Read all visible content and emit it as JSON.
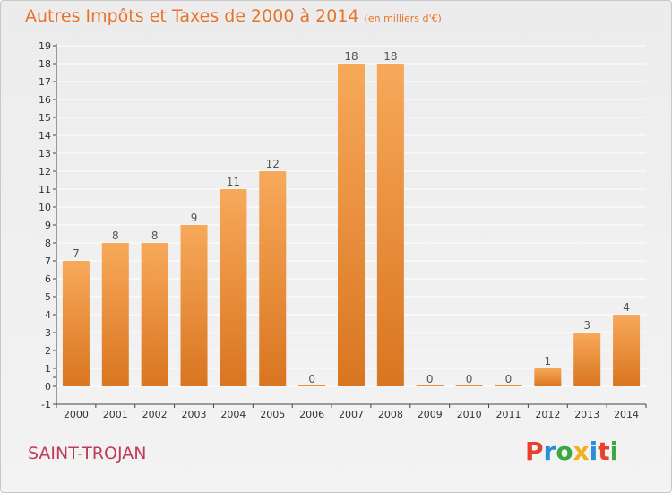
{
  "header": {
    "title": "Autres Impôts et Taxes de 2000 à 2014",
    "unit": "(en milliers d'€)"
  },
  "footer": {
    "commune": "SAINT-TROJAN",
    "brand": "Proxiti",
    "brand_colors": [
      "#e8402a",
      "#2a8fd6",
      "#39a845",
      "#f2b01e",
      "#2a8fd6",
      "#e8402a",
      "#39a845"
    ]
  },
  "colors": {
    "bar_light": "#f7a95a",
    "bar_dark": "#d97520",
    "axis": "#444444",
    "grid": "#ffffff"
  },
  "chart_data": {
    "type": "bar",
    "categories": [
      "2000",
      "2001",
      "2002",
      "2003",
      "2004",
      "2005",
      "2006",
      "2007",
      "2008",
      "2009",
      "2010",
      "2011",
      "2012",
      "2013",
      "2014"
    ],
    "values": [
      7,
      8,
      8,
      9,
      11,
      12,
      0,
      18,
      18,
      0,
      0,
      0,
      1,
      3,
      4
    ],
    "yticks": [
      -1,
      0,
      "",
      1,
      2,
      3,
      4,
      5,
      6,
      7,
      8,
      9,
      10,
      11,
      12,
      13,
      14,
      15,
      16,
      17,
      18,
      19
    ],
    "ylim": [
      -1,
      19
    ],
    "title": "Autres Impôts et Taxes de 2000 à 2014",
    "xlabel": "",
    "ylabel": ""
  }
}
